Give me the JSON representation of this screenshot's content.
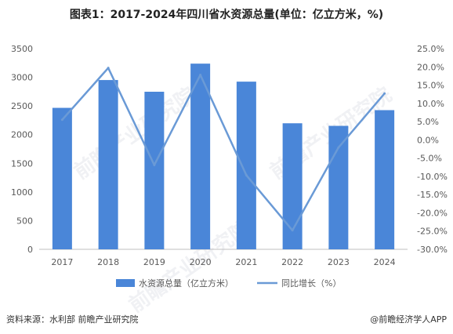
{
  "title": "图表1：2017-2024年四川省水资源总量(单位：亿立方米，%)",
  "source": "资料来源：水利部 前瞻产业研究院",
  "brand": "@前瞻经济学人APP",
  "watermark": "前瞻产业研究院",
  "colors": {
    "bar": "#4a86d8",
    "line": "#6a9ad6",
    "axis": "#bfbfbf",
    "text": "#595959"
  },
  "chart_data": {
    "type": "bar",
    "categories": [
      "2017",
      "2018",
      "2019",
      "2020",
      "2021",
      "2022",
      "2023",
      "2024"
    ],
    "series": [
      {
        "name": "水资源总量（亿立方米）",
        "type": "bar",
        "axis": "left",
        "values": [
          2467,
          2952,
          2748,
          3238,
          2924,
          2198,
          2153,
          2427
        ]
      },
      {
        "name": "同比增长（%）",
        "type": "line",
        "axis": "right",
        "values": [
          5.5,
          19.7,
          -6.9,
          17.8,
          -9.7,
          -24.8,
          -2.1,
          12.7
        ]
      }
    ],
    "y_left": {
      "min": 0,
      "max": 3500,
      "step": 500,
      "ticks": [
        "0",
        "500",
        "1000",
        "1500",
        "2000",
        "2500",
        "3000",
        "3500"
      ]
    },
    "y_right": {
      "min": -30,
      "max": 25,
      "step": 5,
      "ticks": [
        "-30.0%",
        "-25.0%",
        "-20.0%",
        "-15.0%",
        "-10.0%",
        "-5.0%",
        "0.0%",
        "5.0%",
        "10.0%",
        "15.0%",
        "20.0%",
        "25.0%"
      ]
    },
    "grid": false,
    "legend": "bottom"
  }
}
